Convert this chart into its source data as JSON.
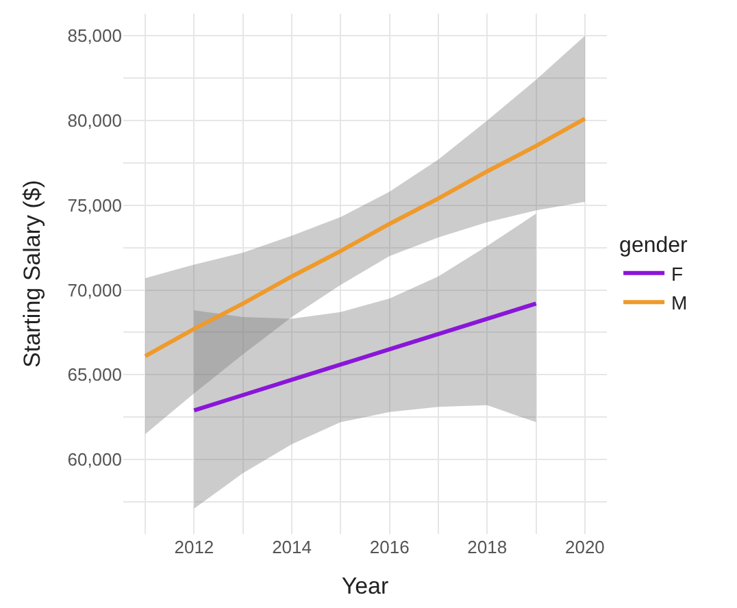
{
  "chart_data": {
    "type": "line",
    "xlabel": "Year",
    "ylabel": "Starting Salary ($)",
    "legend_title": "gender",
    "legend": "right",
    "grid": true,
    "marker": "none",
    "line_style": "solid",
    "xlim": [
      2010.55,
      2020.45
    ],
    "ylim": [
      55600,
      86300
    ],
    "xticks": [
      {
        "value": 2011,
        "label": null
      },
      2012,
      {
        "value": 2013,
        "label": null
      },
      2014,
      {
        "value": 2015,
        "label": null
      },
      2016,
      {
        "value": 2017,
        "label": null
      },
      2018,
      {
        "value": 2019,
        "label": null
      },
      2020
    ],
    "yticks": [
      {
        "value": 57500,
        "label": null
      },
      {
        "value": 60000,
        "label": "60,000"
      },
      {
        "value": 62500,
        "label": null
      },
      {
        "value": 65000,
        "label": "65,000"
      },
      {
        "value": 67500,
        "label": null
      },
      {
        "value": 70000,
        "label": "70,000"
      },
      {
        "value": 72500,
        "label": null
      },
      {
        "value": 75000,
        "label": "75,000"
      },
      {
        "value": 77500,
        "label": null
      },
      {
        "value": 80000,
        "label": "80,000"
      },
      {
        "value": 82500,
        "label": null
      },
      {
        "value": 85000,
        "label": "85,000"
      }
    ],
    "series": [
      {
        "name": "F",
        "color": "#8a16d8",
        "x": [
          2012,
          2013,
          2014,
          2015,
          2016,
          2017,
          2018,
          2019
        ],
        "values": [
          62900,
          63800,
          64700,
          65600,
          66500,
          67400,
          68300,
          69200
        ],
        "lower": [
          57100,
          59200,
          60900,
          62200,
          62800,
          63100,
          63200,
          62200
        ],
        "upper": [
          68800,
          68400,
          68300,
          68700,
          69500,
          70800,
          72600,
          74500
        ]
      },
      {
        "name": "M",
        "color": "#ef9a2b",
        "x": [
          2011,
          2012,
          2013,
          2014,
          2015,
          2016,
          2017,
          2018,
          2019,
          2020
        ],
        "values": [
          66100,
          67700,
          69200,
          70800,
          72300,
          73900,
          75400,
          77000,
          78500,
          80100
        ],
        "lower": [
          61500,
          63900,
          66200,
          68400,
          70300,
          72000,
          73100,
          74000,
          74700,
          75200
        ],
        "upper": [
          70700,
          71500,
          72200,
          73200,
          74300,
          75800,
          77700,
          80000,
          82400,
          85000
        ]
      }
    ]
  }
}
